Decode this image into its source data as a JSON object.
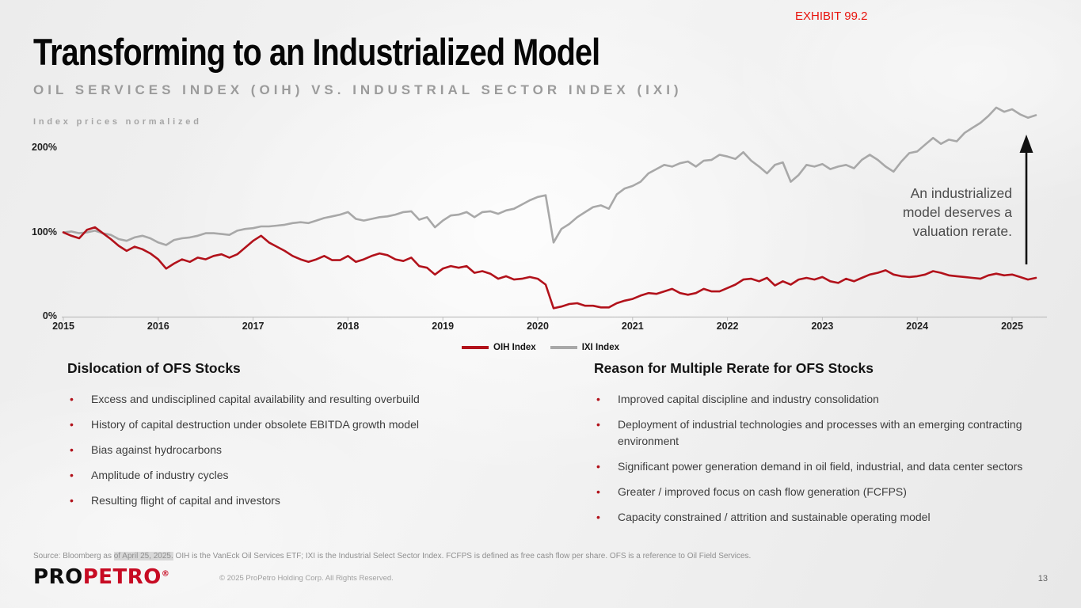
{
  "exhibit_label": "EXHIBIT 99.2",
  "title": "Transforming to an Industrialized Model",
  "subtitle": "OIL SERVICES INDEX (OIH) VS. INDUSTRIAL SECTOR INDEX (IXI)",
  "chart_note": "Index prices normalized",
  "annotation": {
    "line1": "An industrialized",
    "line2": "model deserves a",
    "line3": "valuation rerate."
  },
  "chart_data": {
    "type": "line",
    "title": "OIL SERVICES INDEX (OIH) VS. INDUSTRIAL SECTOR INDEX (IXI)",
    "ylabel": "Index prices normalized",
    "x_unit": "year, monthly samples starting Jan 2015, ending Apr 2025",
    "x_start_year": 2015,
    "x_ticks": [
      2015,
      2016,
      2017,
      2018,
      2019,
      2020,
      2021,
      2022,
      2023,
      2024,
      2025
    ],
    "y_tick_labels": [
      "0%",
      "100%",
      "200%"
    ],
    "y_tick_values": [
      0,
      100,
      200
    ],
    "ylim": [
      0,
      260
    ],
    "grid": false,
    "legend_position": "bottom-center",
    "series": [
      {
        "name": "OIH Index",
        "color": "#b2121b",
        "values": [
          100,
          96,
          93,
          103,
          106,
          99,
          92,
          84,
          78,
          83,
          80,
          75,
          68,
          57,
          63,
          68,
          65,
          70,
          68,
          72,
          74,
          70,
          74,
          82,
          90,
          96,
          88,
          83,
          78,
          72,
          68,
          65,
          68,
          72,
          67,
          67,
          72,
          65,
          68,
          72,
          75,
          73,
          68,
          66,
          70,
          60,
          58,
          50,
          57,
          60,
          58,
          60,
          52,
          54,
          51,
          45,
          48,
          44,
          45,
          47,
          45,
          38,
          10,
          12,
          15,
          16,
          13,
          13,
          11,
          11,
          16,
          19,
          21,
          25,
          28,
          27,
          30,
          33,
          28,
          26,
          28,
          33,
          30,
          30,
          34,
          38,
          44,
          45,
          42,
          46,
          37,
          42,
          38,
          44,
          46,
          44,
          47,
          42,
          40,
          45,
          42,
          46,
          50,
          52,
          55,
          50,
          48,
          47,
          48,
          50,
          54,
          52,
          49,
          48,
          47,
          46,
          45,
          49,
          51,
          49,
          50,
          47,
          44,
          46
        ]
      },
      {
        "name": "IXI Index",
        "color": "#a8a8a8",
        "values": [
          100,
          101,
          99,
          100,
          102,
          99,
          97,
          92,
          90,
          94,
          96,
          93,
          88,
          85,
          91,
          93,
          94,
          96,
          99,
          99,
          98,
          97,
          102,
          104,
          105,
          107,
          107,
          108,
          109,
          111,
          112,
          111,
          114,
          117,
          119,
          121,
          124,
          116,
          114,
          116,
          118,
          119,
          121,
          124,
          125,
          115,
          118,
          106,
          114,
          120,
          121,
          124,
          118,
          124,
          125,
          122,
          126,
          128,
          133,
          138,
          142,
          144,
          88,
          104,
          110,
          118,
          124,
          130,
          132,
          128,
          145,
          152,
          155,
          160,
          170,
          175,
          180,
          178,
          182,
          184,
          178,
          185,
          186,
          192,
          190,
          187,
          195,
          185,
          178,
          170,
          180,
          183,
          160,
          168,
          180,
          178,
          181,
          175,
          178,
          180,
          176,
          186,
          192,
          186,
          178,
          172,
          184,
          194,
          196,
          204,
          212,
          205,
          210,
          208,
          218,
          224,
          230,
          238,
          248,
          243,
          246,
          240,
          236,
          239
        ]
      }
    ]
  },
  "columns": {
    "left": {
      "heading": "Dislocation of OFS Stocks",
      "bullets": [
        "Excess and undisciplined capital availability and resulting overbuild",
        "History of capital destruction under obsolete EBITDA growth model",
        "Bias against hydrocarbons",
        "Amplitude of industry cycles",
        "Resulting flight of capital and investors"
      ]
    },
    "right": {
      "heading": "Reason for Multiple Rerate for OFS Stocks",
      "bullets": [
        "Improved capital discipline and industry consolidation",
        "Deployment of industrial technologies and processes with an emerging contracting environment",
        "Significant power generation demand in oil field, industrial, and data center sectors",
        "Greater / improved focus on cash flow generation (FCFPS)",
        "Capacity constrained / attrition and sustainable operating model"
      ]
    }
  },
  "footer": {
    "source_prefix": "Source: Bloomberg as ",
    "source_highlight": "of April 25, 2025.",
    "source_suffix": " OIH is the VanEck Oil Services ETF; IXI is the Industrial Select Sector Index. FCFPS is defined as free cash flow per share. OFS is a reference to Oil Field Services.",
    "logo_part1": "PRO",
    "logo_part2": "PETRO",
    "logo_reg": "®",
    "copyright": "© 2025 ProPetro Holding Corp. All Rights Reserved.",
    "page_number": "13"
  },
  "colors": {
    "oih_line": "#b2121b",
    "ixi_line": "#a8a8a8",
    "exhibit_red": "#e8140d",
    "logo_red": "#c70b23",
    "bullet_dot": "#b2121b",
    "axis": "#bfbfbf"
  }
}
